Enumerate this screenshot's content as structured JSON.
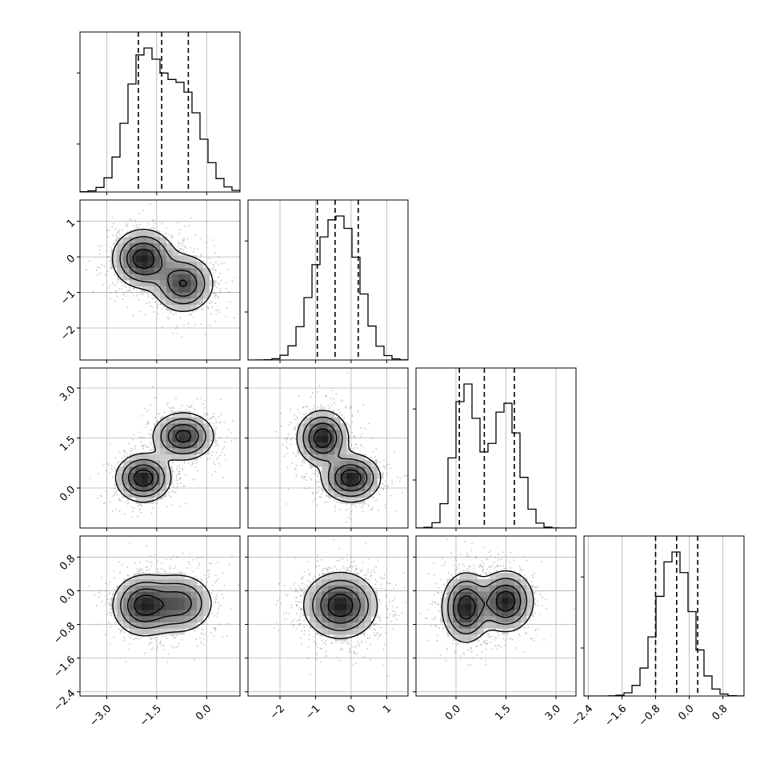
{
  "chart_data": {
    "type": "corner",
    "grid": true,
    "quantiles_shown": [
      0.16,
      0.5,
      0.84
    ],
    "colors": {
      "hist": "#000000",
      "quantile": "#000000",
      "contour": "#000000",
      "grid": "#b0b0b0",
      "point": "#7a7a7a"
    },
    "params": [
      {
        "range": [
          -3.8,
          1.0
        ],
        "ticks": [
          -3.0,
          -1.5,
          0.0
        ],
        "tick_labels": [
          "−3.0",
          "−1.5",
          "0.0"
        ],
        "quantiles": [
          -2.05,
          -1.35,
          -0.55
        ],
        "modes": [
          {
            "mean": -1.9,
            "sd": 0.5,
            "weight": 0.55
          },
          {
            "mean": -0.7,
            "sd": 0.55,
            "weight": 0.45
          }
        ]
      },
      {
        "range": [
          -2.9,
          1.6
        ],
        "ticks": [
          -2,
          -1,
          0,
          1
        ],
        "tick_labels": [
          "−2",
          "−1",
          "0",
          "1"
        ],
        "quantiles": [
          -0.95,
          -0.45,
          0.2
        ],
        "modes": [
          {
            "mean": -0.1,
            "sd": 0.45,
            "weight": 0.55
          },
          {
            "mean": -0.8,
            "sd": 0.45,
            "weight": 0.45
          }
        ]
      },
      {
        "range": [
          -1.2,
          3.6
        ],
        "ticks": [
          0.0,
          1.5,
          3.0
        ],
        "tick_labels": [
          "0.0",
          "1.5",
          "3.0"
        ],
        "quantiles": [
          0.1,
          0.85,
          1.75
        ],
        "modes": [
          {
            "mean": 0.3,
            "sd": 0.35,
            "weight": 0.5
          },
          {
            "mean": 1.5,
            "sd": 0.4,
            "weight": 0.5
          }
        ]
      },
      {
        "range": [
          -2.5,
          1.3
        ],
        "ticks": [
          -2.4,
          -1.6,
          -0.8,
          0.0,
          0.8
        ],
        "tick_labels": [
          "−2.4",
          "−1.6",
          "−0.8",
          "0.0",
          "0.8"
        ],
        "quantiles": [
          -0.8,
          -0.3,
          0.2
        ],
        "modes": [
          {
            "mean": -0.35,
            "sd": 0.4,
            "weight": 1.0
          }
        ]
      }
    ],
    "pairs": [
      {
        "row": 1,
        "col": 0,
        "blobs": [
          {
            "x": -1.9,
            "y": -0.05,
            "sx": 0.45,
            "sy": 0.4,
            "w": 0.55
          },
          {
            "x": -0.7,
            "y": -0.75,
            "sx": 0.45,
            "sy": 0.4,
            "w": 0.45
          }
        ]
      },
      {
        "row": 2,
        "col": 0,
        "blobs": [
          {
            "x": -1.9,
            "y": 0.3,
            "sx": 0.4,
            "sy": 0.35,
            "w": 0.5
          },
          {
            "x": -0.7,
            "y": 1.55,
            "sx": 0.45,
            "sy": 0.35,
            "w": 0.5
          }
        ]
      },
      {
        "row": 2,
        "col": 1,
        "blobs": [
          {
            "x": -0.8,
            "y": 1.5,
            "sx": 0.35,
            "sy": 0.4,
            "w": 0.5
          },
          {
            "x": 0.0,
            "y": 0.3,
            "sx": 0.4,
            "sy": 0.35,
            "w": 0.5
          }
        ]
      },
      {
        "row": 3,
        "col": 0,
        "blobs": [
          {
            "x": -1.9,
            "y": -0.35,
            "sx": 0.45,
            "sy": 0.35,
            "w": 0.55
          },
          {
            "x": -0.8,
            "y": -0.3,
            "sx": 0.5,
            "sy": 0.35,
            "w": 0.45
          }
        ]
      },
      {
        "row": 3,
        "col": 1,
        "blobs": [
          {
            "x": -0.3,
            "y": -0.35,
            "sx": 0.5,
            "sy": 0.38,
            "w": 1.0
          }
        ]
      },
      {
        "row": 3,
        "col": 2,
        "blobs": [
          {
            "x": 0.3,
            "y": -0.4,
            "sx": 0.35,
            "sy": 0.4,
            "w": 0.5
          },
          {
            "x": 1.5,
            "y": -0.25,
            "sx": 0.4,
            "sy": 0.35,
            "w": 0.5
          }
        ]
      }
    ]
  }
}
